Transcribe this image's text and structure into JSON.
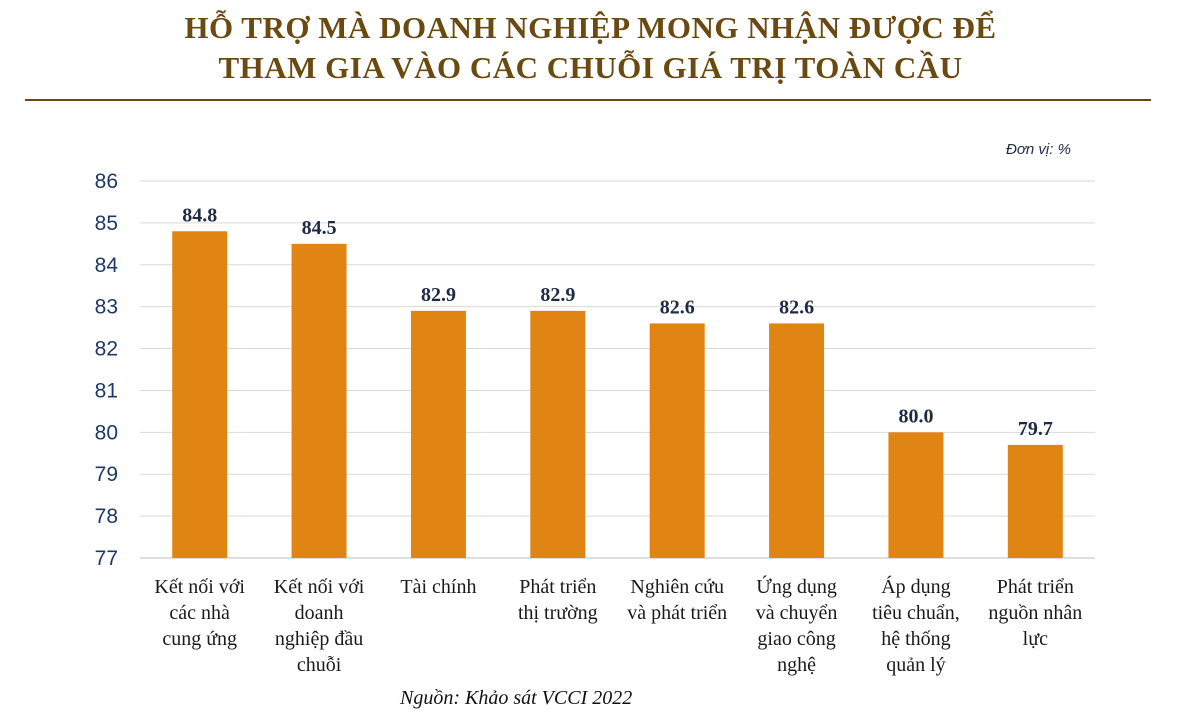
{
  "header": {
    "title_line1": "HỖ TRỢ MÀ DOANH NGHIỆP MONG NHẬN ĐƯỢC ĐỂ",
    "title_line2": "THAM GIA VÀO CÁC CHUỖI GIÁ TRỊ TOÀN CẦU"
  },
  "unit_note": "Đơn vị: %",
  "source_note": "Nguồn: Khảo sát VCCI 2022",
  "colors": {
    "title": "#6b4a12",
    "bar": "#e08514",
    "grid": "#d9d9d9",
    "tick": "#1f3864"
  },
  "chart_data": {
    "type": "bar",
    "title": "HỖ TRỢ MÀ DOANH NGHIỆP MONG NHẬN ĐƯỢC ĐỂ THAM GIA VÀO CÁC CHUỖI GIÁ TRỊ TOÀN CẦU",
    "categories": [
      [
        "Kết nối với",
        "các nhà",
        "cung ứng"
      ],
      [
        "Kết nối với",
        "doanh",
        "nghiệp đầu",
        "chuỗi"
      ],
      [
        "Tài chính"
      ],
      [
        "Phát triển",
        "thị trường"
      ],
      [
        "Nghiên cứu",
        "và phát triển"
      ],
      [
        "Ứng dụng",
        "và chuyển",
        "giao công",
        "nghệ"
      ],
      [
        "Áp dụng",
        "tiêu chuẩn,",
        "hệ thống",
        "quản lý"
      ],
      [
        "Phát triển",
        "nguồn nhân",
        "lực"
      ]
    ],
    "values": [
      84.8,
      84.5,
      82.9,
      82.9,
      82.6,
      82.6,
      80.0,
      79.7
    ],
    "value_labels": [
      "84.8",
      "84.5",
      "82.9",
      "82.9",
      "82.6",
      "82.6",
      "80.0",
      "79.7"
    ],
    "yticks": [
      "77",
      "78",
      "79",
      "80",
      "81",
      "82",
      "83",
      "84",
      "85",
      "86"
    ],
    "ylim": [
      77,
      86
    ],
    "ylabel": "",
    "xlabel": "",
    "grid": true,
    "legend": "none"
  }
}
